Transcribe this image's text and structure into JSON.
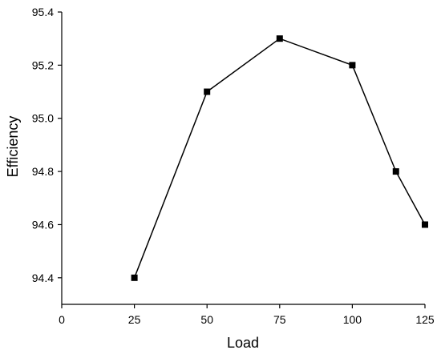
{
  "chart_data": {
    "type": "line",
    "title": "",
    "xlabel": "Load",
    "ylabel": "Efficiency",
    "xlim": [
      0,
      125
    ],
    "ylim": [
      94.3,
      95.4
    ],
    "x_ticks": [
      0,
      25,
      50,
      75,
      100,
      125
    ],
    "y_ticks": [
      94.4,
      94.6,
      94.8,
      95.0,
      95.2,
      95.4
    ],
    "x_tick_labels": [
      "0",
      "25",
      "50",
      "75",
      "100",
      "125"
    ],
    "y_tick_labels": [
      "94.4",
      "94.6",
      "94.8",
      "95.0",
      "95.2",
      "95.4"
    ],
    "grid": false,
    "legend": "none",
    "marker": "square",
    "line_color": "#000000",
    "series": [
      {
        "x": [
          25,
          50,
          75,
          100,
          115,
          125
        ],
        "y": [
          94.4,
          95.1,
          95.3,
          95.2,
          94.8,
          94.6
        ]
      }
    ]
  }
}
